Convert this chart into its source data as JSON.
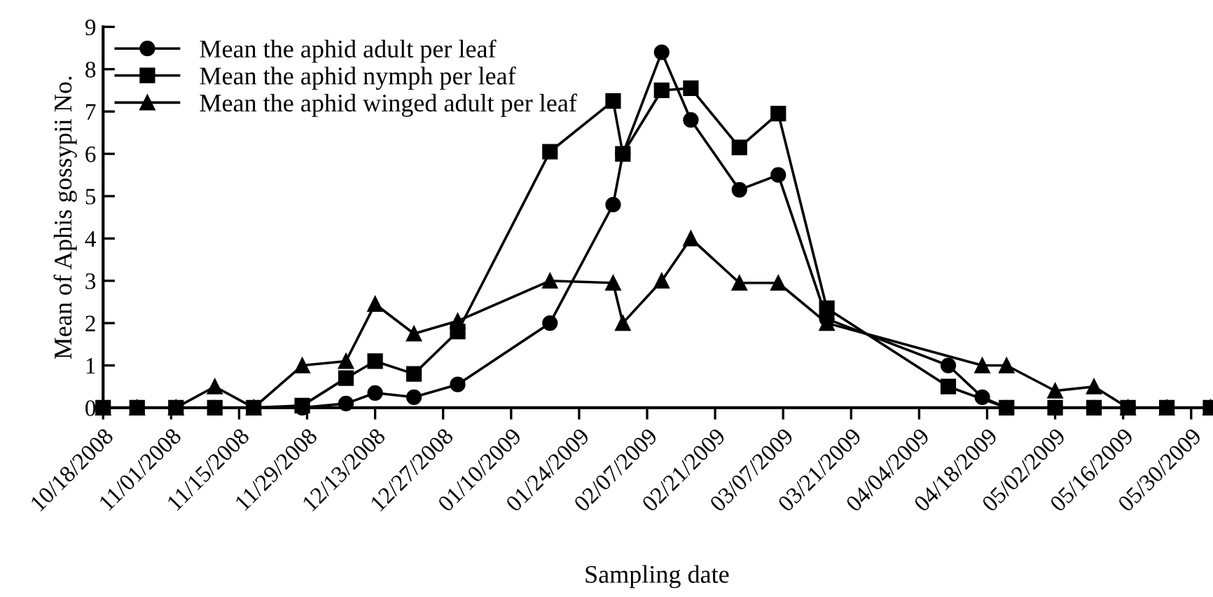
{
  "chart_data": {
    "type": "line",
    "xlabel": "Sampling date",
    "ylabel": "Mean of Aphis gossypii No.",
    "xlim": [
      "2008-10-18",
      "2009-06-03"
    ],
    "xticks": [
      {
        "value": "2008-10-18",
        "label": "10/18/2008"
      },
      {
        "value": "2008-11-01",
        "label": "11/01/2008"
      },
      {
        "value": "2008-11-15",
        "label": "11/15/2008"
      },
      {
        "value": "2008-11-29",
        "label": "11/29/2008"
      },
      {
        "value": "2008-12-13",
        "label": "12/13/2008"
      },
      {
        "value": "2008-12-27",
        "label": "12/27/2008"
      },
      {
        "value": "2009-01-10",
        "label": "01/10/2009"
      },
      {
        "value": "2009-01-24",
        "label": "01/24/2009"
      },
      {
        "value": "2009-02-07",
        "label": "02/07/2009"
      },
      {
        "value": "2009-02-21",
        "label": "02/21/2009"
      },
      {
        "value": "2009-03-07",
        "label": "03/07/2009"
      },
      {
        "value": "2009-03-21",
        "label": "03/21/2009"
      },
      {
        "value": "2009-04-04",
        "label": "04/04/2009"
      },
      {
        "value": "2009-04-18",
        "label": "04/18/2009"
      },
      {
        "value": "2009-05-02",
        "label": "05/02/2009"
      },
      {
        "value": "2009-05-16",
        "label": "05/16/2009"
      },
      {
        "value": "2009-05-30",
        "label": "05/30/2009"
      }
    ],
    "ylim": [
      0,
      9
    ],
    "yticks": [
      0,
      1,
      2,
      3,
      4,
      5,
      6,
      7,
      8,
      9
    ],
    "grid": false,
    "legend": "top left",
    "line_style": "solid",
    "series": [
      {
        "name": "Mean the aphid adult per leaf",
        "color": "#000000",
        "marker": "circle",
        "x": [
          "2008-10-18",
          "2008-10-25",
          "2008-11-02",
          "2008-11-10",
          "2008-11-18",
          "2008-11-28",
          "2008-12-07",
          "2008-12-13",
          "2008-12-21",
          "2008-12-30",
          "2009-01-18",
          "2009-01-31",
          "2009-02-02",
          "2009-02-10",
          "2009-02-16",
          "2009-02-26",
          "2009-03-06",
          "2009-03-16",
          "2009-04-10",
          "2009-04-17",
          "2009-04-22",
          "2009-05-02",
          "2009-05-10",
          "2009-05-17",
          "2009-05-25",
          "2009-06-03"
        ],
        "values": [
          0,
          0,
          0,
          0,
          0,
          0,
          0.1,
          0.35,
          0.25,
          0.55,
          2.0,
          4.8,
          6.0,
          8.4,
          6.8,
          5.15,
          5.5,
          2.1,
          1.0,
          0.25,
          0,
          0,
          0,
          0,
          0,
          0
        ]
      },
      {
        "name": "Mean the aphid nymph per leaf",
        "color": "#000000",
        "marker": "square",
        "x": [
          "2008-10-18",
          "2008-10-25",
          "2008-11-02",
          "2008-11-10",
          "2008-11-18",
          "2008-11-28",
          "2008-12-07",
          "2008-12-13",
          "2008-12-21",
          "2008-12-30",
          "2009-01-18",
          "2009-01-31",
          "2009-02-02",
          "2009-02-10",
          "2009-02-16",
          "2009-02-26",
          "2009-03-06",
          "2009-03-16",
          "2009-04-10",
          "2009-04-22",
          "2009-05-02",
          "2009-05-10",
          "2009-05-17",
          "2009-05-25",
          "2009-06-03"
        ],
        "values": [
          0,
          0,
          0,
          0,
          0,
          0.05,
          0.7,
          1.1,
          0.8,
          1.8,
          6.05,
          7.25,
          6.0,
          7.5,
          7.55,
          6.15,
          6.95,
          2.35,
          0.5,
          0,
          0,
          0,
          0,
          0,
          0
        ]
      },
      {
        "name": "Mean the aphid winged adult per leaf",
        "color": "#000000",
        "marker": "triangle",
        "x": [
          "2008-10-18",
          "2008-10-25",
          "2008-11-02",
          "2008-11-10",
          "2008-11-18",
          "2008-11-28",
          "2008-12-07",
          "2008-12-13",
          "2008-12-21",
          "2008-12-30",
          "2009-01-18",
          "2009-01-31",
          "2009-02-02",
          "2009-02-10",
          "2009-02-16",
          "2009-02-26",
          "2009-03-06",
          "2009-03-16",
          "2009-04-17",
          "2009-04-22",
          "2009-05-02",
          "2009-05-10",
          "2009-05-17",
          "2009-05-25",
          "2009-06-03"
        ],
        "values": [
          0,
          0,
          0,
          0.5,
          0,
          1.0,
          1.1,
          2.45,
          1.75,
          2.05,
          3.0,
          2.95,
          2.0,
          3.0,
          4.0,
          2.95,
          2.95,
          2.0,
          1.0,
          1.0,
          0.4,
          0.5,
          0,
          0,
          0
        ]
      }
    ]
  }
}
